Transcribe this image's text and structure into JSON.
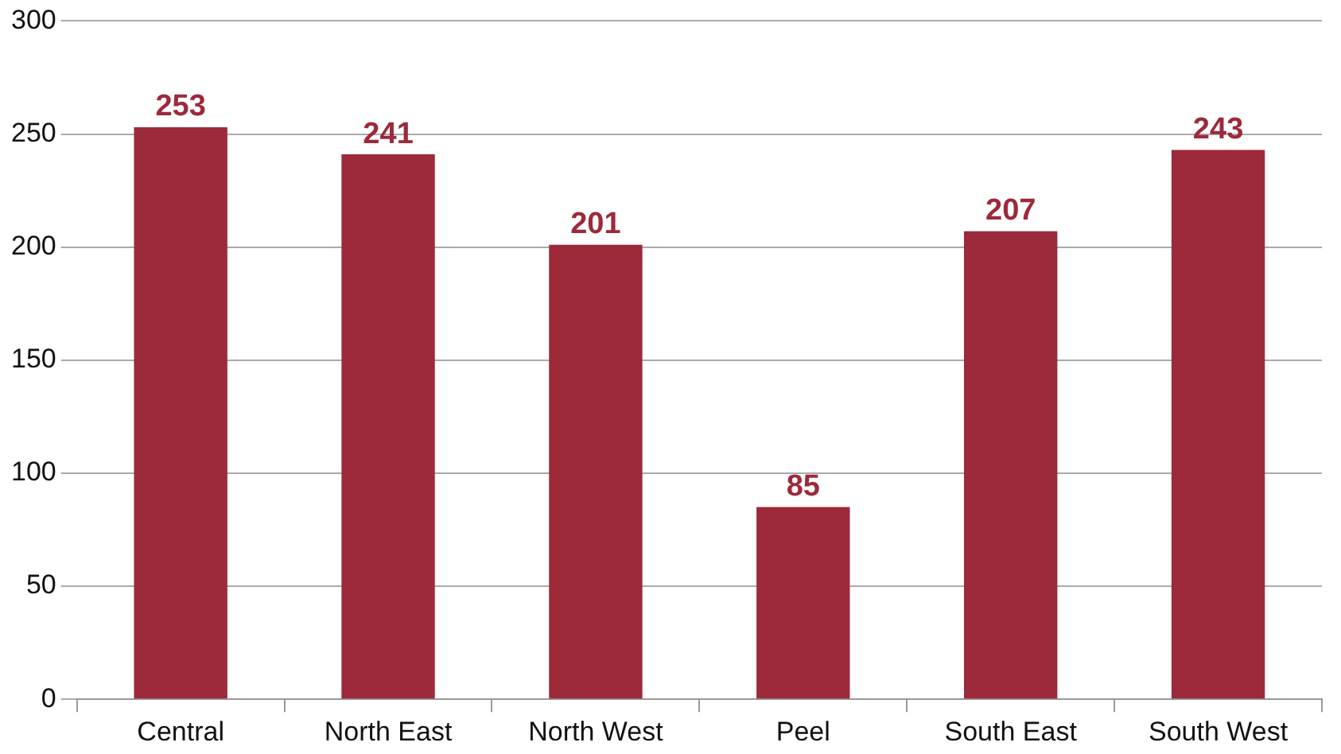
{
  "chart_data": {
    "type": "bar",
    "categories": [
      "Central",
      "North East",
      "North West",
      "Peel",
      "South East",
      "South West"
    ],
    "values": [
      253,
      241,
      201,
      85,
      207,
      243
    ],
    "color": "#9c2a3b",
    "ylim": [
      0,
      300
    ],
    "yticks": [
      0,
      50,
      100,
      150,
      200,
      250,
      300
    ],
    "grid": "y",
    "data_labels": true
  }
}
